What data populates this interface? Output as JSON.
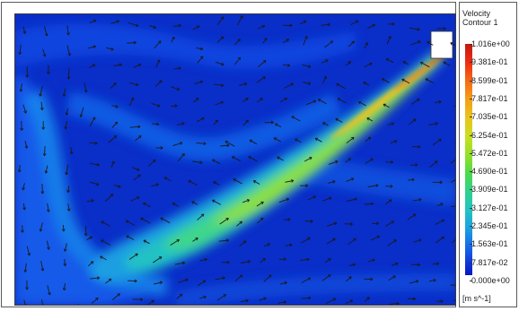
{
  "legend": {
    "title_line1": "Velocity",
    "title_line2": "Contour 1",
    "ticks": [
      "1.016e+00",
      "9.381e-01",
      "8.599e-01",
      "7.817e-01",
      "7.035e-01",
      "6.254e-01",
      "5.472e-01",
      "4.690e-01",
      "3.909e-01",
      "3.127e-01",
      "2.345e-01",
      "1.563e-01",
      "7.817e-02",
      "0.000e+00"
    ],
    "units": "[m s^-1]",
    "colors": [
      "#c21a10",
      "#ee2c12",
      "#f66a14",
      "#f59e17",
      "#e8c51b",
      "#c8df1d",
      "#93e226",
      "#4fd94b",
      "#2ed18c",
      "#22c3c3",
      "#1c9fe2",
      "#1667ea",
      "#0f35d8",
      "#0a16c0"
    ]
  },
  "plot": {
    "background_color": "#0a2ec8",
    "vector_color": "#1a1a1a",
    "inlet_color": "#ffffff"
  }
}
